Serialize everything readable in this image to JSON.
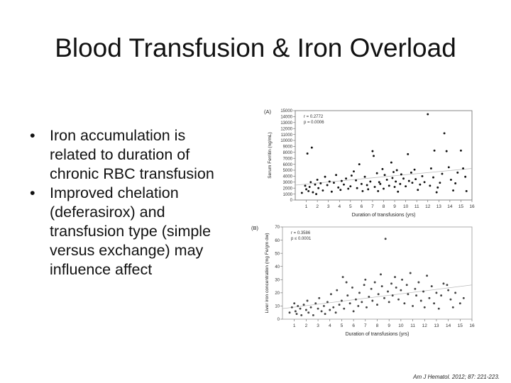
{
  "slide": {
    "title": "Blood Transfusion & Iron Overload",
    "bullets": [
      {
        "lines": [
          "Iron accumulation is",
          "related to duration of",
          "chronic RBC transfusion"
        ]
      },
      {
        "lines": [
          "Improved chelation",
          "(deferasirox) and",
          "transfusion type (simple",
          "versus exchange) may",
          "influence affect"
        ]
      }
    ],
    "citation": "Am J Hematol. 2012; 87: 221-223."
  },
  "chart_data": [
    {
      "type": "scatter",
      "panel_label": "(A)",
      "xlabel": "Duration of transfusions (yrs)",
      "ylabel": "Serum Ferritin (ng/mL)",
      "annotation": [
        "r = 0.2772",
        "p = 0.0006"
      ],
      "xlim": [
        0,
        16
      ],
      "ylim": [
        0,
        15000
      ],
      "xticks": [
        1,
        2,
        3,
        4,
        5,
        6,
        7,
        8,
        9,
        10,
        11,
        12,
        13,
        14,
        15,
        16
      ],
      "yticks": [
        0,
        1000,
        2000,
        3000,
        4000,
        5000,
        6000,
        7000,
        8000,
        9000,
        10000,
        11000,
        12000,
        13000,
        14000,
        15000
      ],
      "trend": {
        "x": [
          0,
          16
        ],
        "y": [
          2500,
          5300
        ]
      },
      "points": [
        [
          0.6,
          1200
        ],
        [
          0.9,
          2400
        ],
        [
          1.0,
          1800
        ],
        [
          1.1,
          7800
        ],
        [
          1.2,
          1500
        ],
        [
          1.3,
          2200
        ],
        [
          1.4,
          3000
        ],
        [
          1.5,
          8800
        ],
        [
          1.6,
          1300
        ],
        [
          1.8,
          2600
        ],
        [
          1.9,
          1000
        ],
        [
          2.0,
          3400
        ],
        [
          2.1,
          2000
        ],
        [
          2.3,
          2800
        ],
        [
          2.5,
          1600
        ],
        [
          2.7,
          3900
        ],
        [
          2.9,
          2500
        ],
        [
          3.1,
          3100
        ],
        [
          3.3,
          1400
        ],
        [
          3.5,
          2900
        ],
        [
          3.7,
          4200
        ],
        [
          3.9,
          2100
        ],
        [
          4.1,
          1700
        ],
        [
          4.2,
          3200
        ],
        [
          4.4,
          2600
        ],
        [
          4.6,
          3600
        ],
        [
          4.8,
          1900
        ],
        [
          5.0,
          2300
        ],
        [
          5.1,
          4100
        ],
        [
          5.3,
          4800
        ],
        [
          5.5,
          3300
        ],
        [
          5.6,
          2000
        ],
        [
          5.8,
          6000
        ],
        [
          6.0,
          2700
        ],
        [
          6.1,
          1500
        ],
        [
          6.3,
          3900
        ],
        [
          6.5,
          2500
        ],
        [
          6.6,
          1800
        ],
        [
          6.8,
          3100
        ],
        [
          7.0,
          8200
        ],
        [
          7.1,
          7400
        ],
        [
          7.2,
          2200
        ],
        [
          7.4,
          4500
        ],
        [
          7.5,
          1500
        ],
        [
          7.6,
          3000
        ],
        [
          7.7,
          2700
        ],
        [
          7.9,
          5200
        ],
        [
          8.0,
          1900
        ],
        [
          8.1,
          4200
        ],
        [
          8.3,
          3400
        ],
        [
          8.5,
          2400
        ],
        [
          8.7,
          6300
        ],
        [
          8.8,
          3700
        ],
        [
          8.9,
          4700
        ],
        [
          9.0,
          2200
        ],
        [
          9.1,
          3100
        ],
        [
          9.2,
          5000
        ],
        [
          9.3,
          1400
        ],
        [
          9.5,
          2700
        ],
        [
          9.6,
          4300
        ],
        [
          9.8,
          3600
        ],
        [
          10.0,
          2300
        ],
        [
          10.2,
          7700
        ],
        [
          10.3,
          3200
        ],
        [
          10.5,
          4600
        ],
        [
          10.6,
          2900
        ],
        [
          10.8,
          5100
        ],
        [
          10.9,
          3500
        ],
        [
          11.1,
          1700
        ],
        [
          11.3,
          2600
        ],
        [
          11.5,
          4000
        ],
        [
          11.7,
          3000
        ],
        [
          12.0,
          14400
        ],
        [
          12.2,
          2400
        ],
        [
          12.3,
          5300
        ],
        [
          12.5,
          3800
        ],
        [
          12.6,
          8300
        ],
        [
          12.8,
          1300
        ],
        [
          12.9,
          2100
        ],
        [
          13.1,
          2900
        ],
        [
          13.3,
          4400
        ],
        [
          13.5,
          11200
        ],
        [
          13.7,
          8200
        ],
        [
          13.9,
          5500
        ],
        [
          14.1,
          3400
        ],
        [
          14.3,
          1600
        ],
        [
          14.5,
          2800
        ],
        [
          14.7,
          4600
        ],
        [
          15.0,
          8300
        ],
        [
          15.2,
          5300
        ],
        [
          15.4,
          3900
        ],
        [
          15.5,
          1500
        ]
      ]
    },
    {
      "type": "scatter",
      "panel_label": "(B)",
      "xlabel": "Duration of transfusions (yrs)",
      "ylabel": "Liver iron concentration (mg Fe/gm dw)",
      "annotation": [
        "r = 0.3586",
        "p ≤ 0.0001"
      ],
      "xlim": [
        0,
        16
      ],
      "ylim": [
        0,
        70
      ],
      "xticks": [
        1,
        2,
        3,
        4,
        5,
        6,
        7,
        8,
        9,
        10,
        11,
        12,
        13,
        14,
        15,
        16
      ],
      "yticks": [
        0,
        10,
        20,
        30,
        40,
        50,
        60,
        70
      ],
      "trend": {
        "x": [
          0,
          16
        ],
        "y": [
          8,
          26
        ]
      },
      "points": [
        [
          0.6,
          5
        ],
        [
          0.8,
          9
        ],
        [
          1.0,
          12
        ],
        [
          1.1,
          6
        ],
        [
          1.2,
          4
        ],
        [
          1.3,
          10
        ],
        [
          1.5,
          8
        ],
        [
          1.6,
          3
        ],
        [
          1.8,
          11
        ],
        [
          2.0,
          7
        ],
        [
          2.1,
          14
        ],
        [
          2.2,
          5
        ],
        [
          2.4,
          9
        ],
        [
          2.6,
          3
        ],
        [
          2.8,
          12
        ],
        [
          3.0,
          8
        ],
        [
          3.1,
          16
        ],
        [
          3.3,
          6
        ],
        [
          3.5,
          10
        ],
        [
          3.6,
          4
        ],
        [
          3.8,
          13
        ],
        [
          4.0,
          7
        ],
        [
          4.1,
          19
        ],
        [
          4.3,
          9
        ],
        [
          4.5,
          5
        ],
        [
          4.6,
          22
        ],
        [
          4.8,
          11
        ],
        [
          5.0,
          14
        ],
        [
          5.1,
          32
        ],
        [
          5.2,
          8
        ],
        [
          5.4,
          28
        ],
        [
          5.5,
          18
        ],
        [
          5.7,
          12
        ],
        [
          5.9,
          24
        ],
        [
          6.0,
          6
        ],
        [
          6.2,
          15
        ],
        [
          6.4,
          10
        ],
        [
          6.5,
          20
        ],
        [
          6.7,
          13
        ],
        [
          6.9,
          26
        ],
        [
          7.0,
          30
        ],
        [
          7.1,
          9
        ],
        [
          7.3,
          17
        ],
        [
          7.5,
          23
        ],
        [
          7.6,
          14
        ],
        [
          7.8,
          28
        ],
        [
          8.0,
          11
        ],
        [
          8.1,
          19
        ],
        [
          8.3,
          34
        ],
        [
          8.4,
          25
        ],
        [
          8.6,
          16
        ],
        [
          8.7,
          61
        ],
        [
          8.9,
          21
        ],
        [
          9.0,
          13
        ],
        [
          9.2,
          27
        ],
        [
          9.3,
          18
        ],
        [
          9.5,
          32
        ],
        [
          9.6,
          24
        ],
        [
          9.8,
          15
        ],
        [
          10.0,
          22
        ],
        [
          10.1,
          30
        ],
        [
          10.3,
          12
        ],
        [
          10.5,
          26
        ],
        [
          10.6,
          19
        ],
        [
          10.8,
          35
        ],
        [
          11.0,
          10
        ],
        [
          11.2,
          23
        ],
        [
          11.3,
          18
        ],
        [
          11.5,
          28
        ],
        [
          11.7,
          14
        ],
        [
          11.9,
          21
        ],
        [
          12.0,
          9
        ],
        [
          12.2,
          33
        ],
        [
          12.4,
          16
        ],
        [
          12.6,
          25
        ],
        [
          12.8,
          12
        ],
        [
          13.0,
          20
        ],
        [
          13.2,
          8
        ],
        [
          13.4,
          18
        ],
        [
          13.6,
          27
        ],
        [
          13.9,
          26
        ],
        [
          14.0,
          22
        ],
        [
          14.2,
          15
        ],
        [
          14.4,
          9
        ],
        [
          14.6,
          20
        ],
        [
          15.0,
          12
        ],
        [
          15.3,
          16
        ]
      ]
    }
  ]
}
